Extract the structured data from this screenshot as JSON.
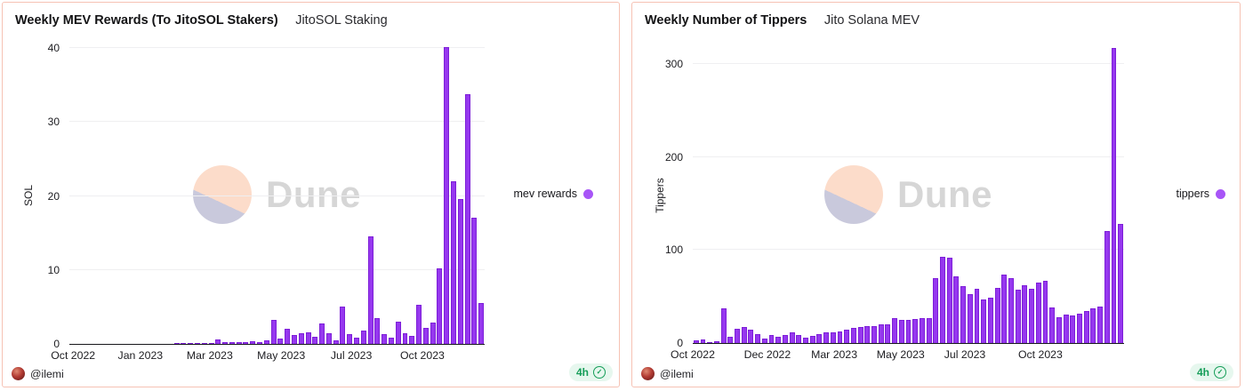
{
  "style": {
    "card_border": "#f6c2b4",
    "bar_fill": "#9638ef",
    "bar_edge": "#7d1ed8",
    "legend_dot": "#a855f7",
    "grid_color": "#efeff1",
    "axis_color": "#17171b",
    "badge_green": "#159d58",
    "badge_bg": "#e6f7ee",
    "watermark_peach": "#fcdcca",
    "watermark_lavender": "#c9c9dc"
  },
  "watermark": {
    "text": "Dune"
  },
  "footer": {
    "author": "@ilemi",
    "badge": "4h"
  },
  "chart_data": [
    {
      "type": "bar",
      "title": "Weekly MEV Rewards (To JitoSOL Stakers)",
      "subtitle": "JitoSOL Staking",
      "ylabel": "SOL",
      "legend": [
        "mev rewards"
      ],
      "ylim": [
        0,
        40.5
      ],
      "yticks": [
        0,
        10,
        20,
        30,
        40
      ],
      "grid": true,
      "legend_position": "right",
      "x_unit": "week",
      "x_range": "Oct 2022 - Dec 2023",
      "x_ticks": [
        {
          "label": "Oct 2022",
          "f": 0.009
        },
        {
          "label": "Jan 2023",
          "f": 0.171
        },
        {
          "label": "Mar 2023",
          "f": 0.338
        },
        {
          "label": "May 2023",
          "f": 0.51
        },
        {
          "label": "Jul 2023",
          "f": 0.679
        },
        {
          "label": "Oct 2023",
          "f": 0.85
        }
      ],
      "values": [
        0,
        0,
        0,
        0,
        0,
        0,
        0,
        0,
        0,
        0,
        0,
        0,
        0,
        0,
        0,
        0.02,
        0.04,
        0.06,
        0.1,
        0.12,
        0.15,
        0.65,
        0.2,
        0.25,
        0.3,
        0.25,
        0.35,
        0.3,
        0.45,
        3.3,
        0.7,
        2.0,
        1.2,
        1.5,
        1.6,
        0.95,
        2.8,
        1.4,
        0.5,
        5.0,
        1.3,
        0.8,
        1.8,
        14.5,
        3.5,
        1.3,
        0.8,
        3.0,
        1.4,
        1.1,
        5.3,
        2.2,
        2.9,
        10.2,
        40.2,
        22.0,
        19.6,
        33.8,
        17.1,
        5.5
      ]
    },
    {
      "type": "bar",
      "title": "Weekly Number of Tippers",
      "subtitle": "Jito Solana MEV",
      "ylabel": "Tippers",
      "legend": [
        "tippers"
      ],
      "ylim": [
        0,
        320
      ],
      "yticks": [
        0,
        100,
        200,
        300
      ],
      "grid": true,
      "legend_position": "right",
      "x_unit": "week",
      "x_range": "Oct 2022 - Dec 2023",
      "x_ticks": [
        {
          "label": "Oct 2022",
          "f": 0.0
        },
        {
          "label": "Dec 2022",
          "f": 0.173
        },
        {
          "label": "Mar 2023",
          "f": 0.328
        },
        {
          "label": "May 2023",
          "f": 0.482
        },
        {
          "label": "Jul 2023",
          "f": 0.631
        },
        {
          "label": "Oct 2023",
          "f": 0.806
        }
      ],
      "values": [
        3,
        4,
        1,
        2,
        37,
        7,
        15,
        17,
        14,
        10,
        5,
        9,
        7,
        9,
        11,
        9,
        6,
        8,
        10,
        11,
        11,
        12,
        14,
        16,
        17,
        18,
        18,
        20,
        20,
        27,
        25,
        25,
        26,
        27,
        27,
        70,
        93,
        92,
        72,
        61,
        53,
        58,
        47,
        49,
        59,
        74,
        70,
        57,
        62,
        58,
        65,
        67,
        38,
        28,
        31,
        30,
        32,
        34,
        37,
        39,
        120,
        317,
        128
      ]
    }
  ]
}
